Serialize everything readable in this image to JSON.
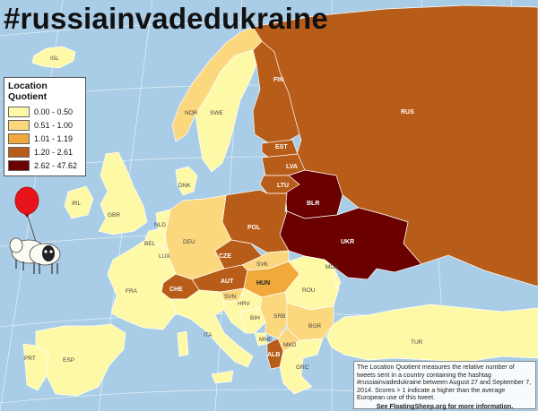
{
  "title": "#russiainvadedukraine",
  "legend": {
    "title": "Location Quotient",
    "items": [
      {
        "label": "0.00 - 0.50",
        "color": "#fef9a7"
      },
      {
        "label": "0.51 - 1.00",
        "color": "#fbd77e"
      },
      {
        "label": "1.01 - 1.19",
        "color": "#f0a93a"
      },
      {
        "label": "1.20 - 2.61",
        "color": "#b85c19"
      },
      {
        "label": "2.62 - 47.62",
        "color": "#6a0000"
      }
    ]
  },
  "countries": {
    "ISL": "ISL",
    "NOR": "NOR",
    "SWE": "SWE",
    "FIN": "FIN",
    "RUS": "RUS",
    "EST": "EST",
    "LVA": "LVA",
    "LTU": "LTU",
    "BLR": "BLR",
    "UKR": "UKR",
    "POL": "POL",
    "DNK": "DNK",
    "GBR": "GBR",
    "IRL": "IRL",
    "NLD": "NLD",
    "BEL": "BEL",
    "LUX": "LUX",
    "DEU": "DEU",
    "CZE": "CZE",
    "SVK": "SVK",
    "AUT": "AUT",
    "HUN": "HUN",
    "CHE": "CHE",
    "FRA": "FRA",
    "SVN": "SVN",
    "HRV": "HRV",
    "BIH": "BIH",
    "SRB": "SRB",
    "ROU": "ROU",
    "MDA": "MDA",
    "BGR": "BGR",
    "MNE": "MNE",
    "MKD": "MKD",
    "ALB": "ALB",
    "GRC": "GRC",
    "ITA": "ITA",
    "ESP": "ESP",
    "PRT": "PRT",
    "TUR": "TUR"
  },
  "note": {
    "text": "The Location Quotient measures the relative number of tweets sent in a country containing the hashtag #russiainvadedukraine between August 27 and September 7, 2014. Scores > 1 indicate a higher than the average European use of this tweet.",
    "footer": "See FloatingSheep.org for more information."
  }
}
